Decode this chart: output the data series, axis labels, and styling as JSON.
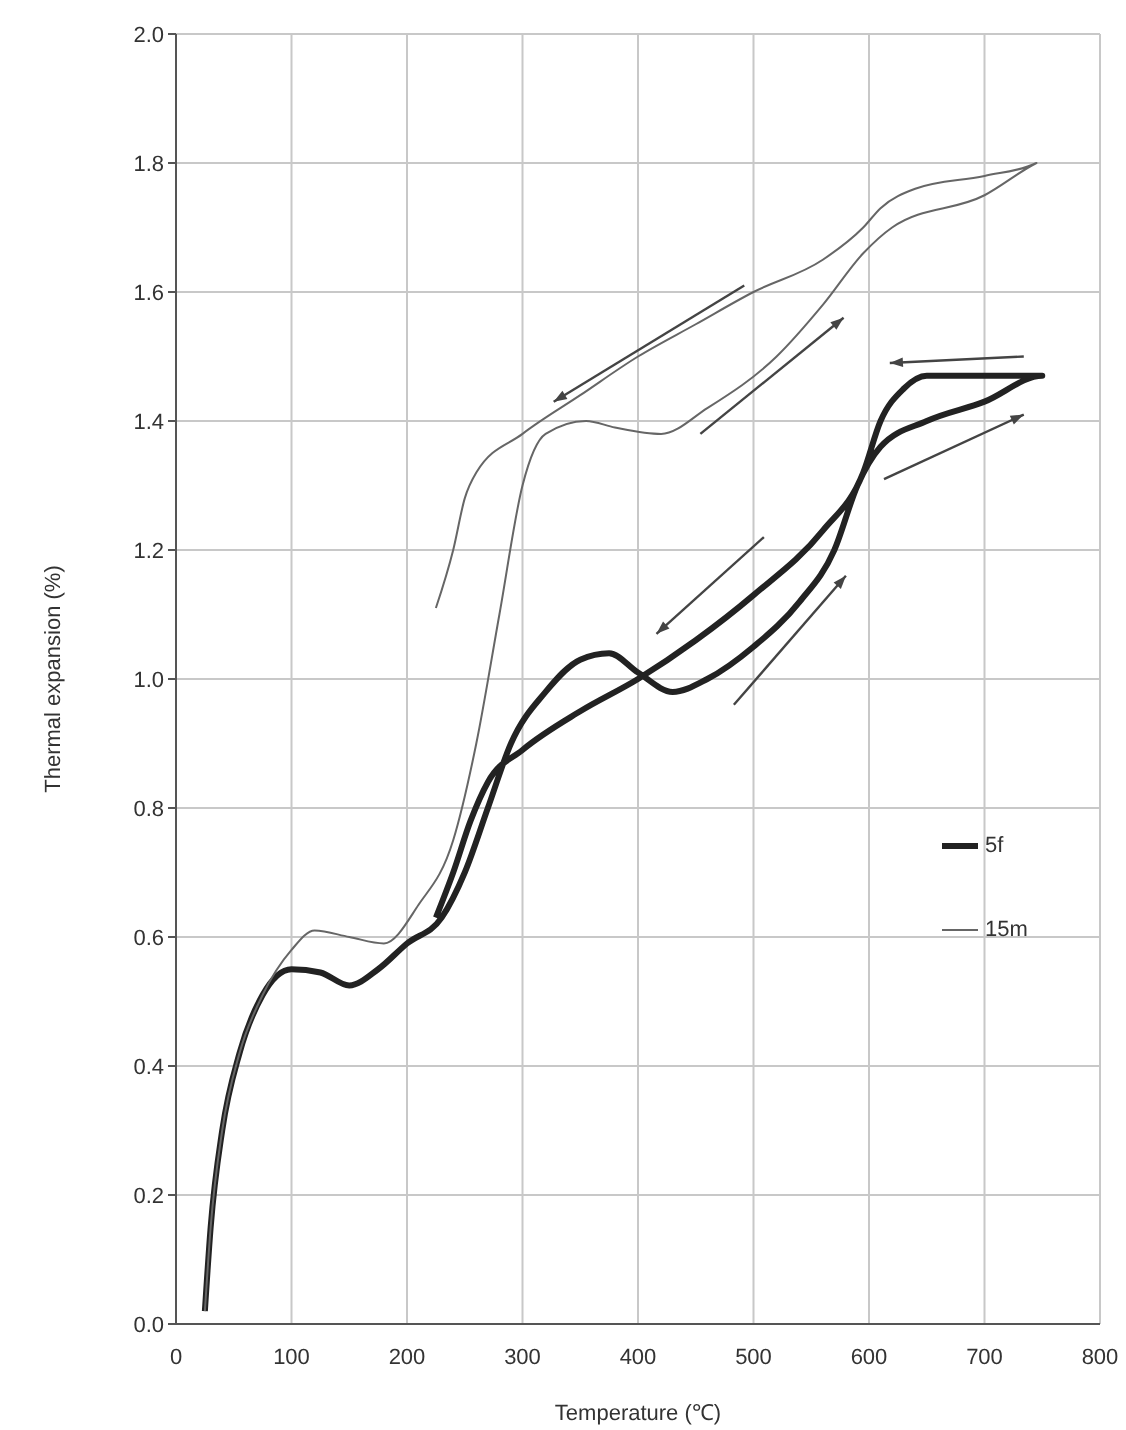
{
  "chart_data": {
    "type": "line",
    "xlabel": "Temperature (℃)",
    "ylabel": "Thermal expansion (%)",
    "xlim": [
      0,
      800
    ],
    "xticks": [
      0,
      100,
      200,
      300,
      400,
      500,
      600,
      700,
      800
    ],
    "ylim": [
      0,
      2
    ],
    "yticks": [
      {
        "value": 0,
        "label": "0.0"
      },
      {
        "value": 0.2,
        "label": "0.2"
      },
      {
        "value": 0.4,
        "label": "0.4"
      },
      {
        "value": 0.6,
        "label": "0.6"
      },
      {
        "value": 0.8,
        "label": "0.8"
      },
      {
        "value": 1,
        "label": "1.0"
      },
      {
        "value": 1.2,
        "label": "1.2"
      },
      {
        "value": 1.4,
        "label": "1.4"
      },
      {
        "value": 1.6,
        "label": "1.6"
      },
      {
        "value": 1.8,
        "label": "1.8"
      },
      {
        "value": 2,
        "label": "2.0"
      }
    ],
    "grid": true,
    "legend": "right",
    "marker": "none",
    "line_style": "solid",
    "series": [
      {
        "name": "5f",
        "color": "#222222",
        "x": [
          25,
          30,
          40,
          55,
          75,
          100,
          125,
          150,
          175,
          200,
          230,
          250,
          270,
          290,
          320,
          350,
          375,
          400,
          430,
          460,
          500,
          540,
          570,
          590,
          610,
          650,
          700,
          750,
          700,
          650,
          630,
          610,
          595,
          560,
          500,
          450,
          400,
          350,
          300,
          270,
          255,
          240,
          225
        ],
        "values": [
          0.02,
          0.15,
          0.3,
          0.42,
          0.51,
          0.55,
          0.545,
          0.525,
          0.55,
          0.59,
          0.63,
          0.7,
          0.8,
          0.9,
          0.98,
          1.03,
          1.04,
          1.01,
          0.98,
          1.0,
          1.05,
          1.12,
          1.2,
          1.3,
          1.36,
          1.4,
          1.43,
          1.47,
          1.47,
          1.47,
          1.45,
          1.4,
          1.32,
          1.23,
          1.13,
          1.06,
          1.0,
          0.95,
          0.89,
          0.84,
          0.78,
          0.7,
          0.63
        ]
      },
      {
        "name": "15m",
        "color": "#666666",
        "x": [
          25,
          30,
          40,
          55,
          75,
          100,
          120,
          150,
          180,
          210,
          240,
          260,
          280,
          300,
          320,
          355,
          380,
          420,
          460,
          520,
          560,
          595,
          620,
          700,
          745,
          700,
          640,
          610,
          595,
          560,
          500,
          450,
          400,
          350,
          300,
          260,
          250,
          240,
          225
        ],
        "values": [
          0.02,
          0.15,
          0.3,
          0.42,
          0.51,
          0.58,
          0.61,
          0.6,
          0.59,
          0.65,
          0.75,
          0.9,
          1.1,
          1.3,
          1.38,
          1.4,
          1.39,
          1.38,
          1.42,
          1.5,
          1.58,
          1.66,
          1.7,
          1.75,
          1.8,
          1.78,
          1.76,
          1.73,
          1.7,
          1.65,
          1.6,
          1.55,
          1.5,
          1.44,
          1.38,
          1.32,
          1.28,
          1.2,
          1.11
        ]
      }
    ]
  }
}
